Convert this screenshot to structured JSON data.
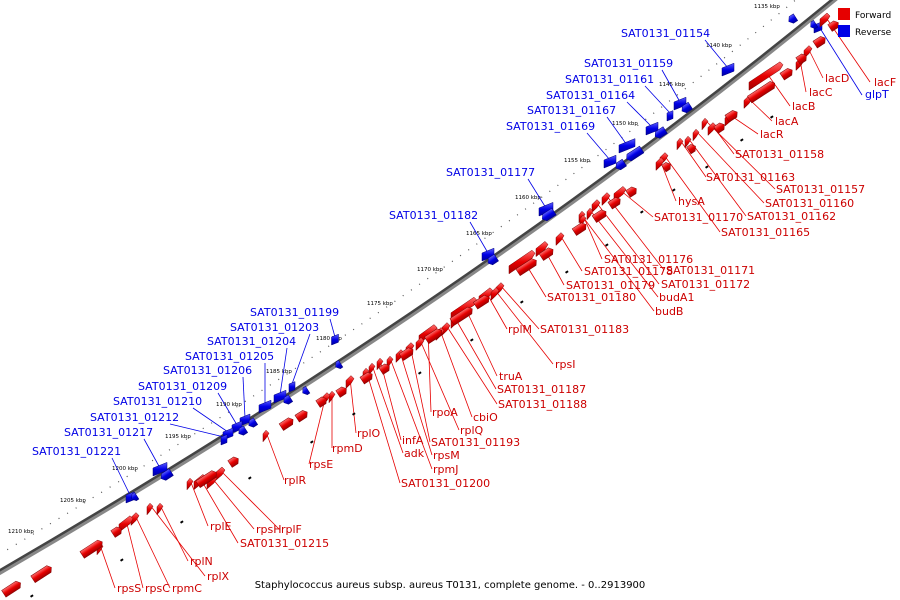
{
  "caption": "Staphylococcus aureus subsp. aureus T0131, complete genome. - 0..2913900",
  "legend": {
    "forward_label": "Forward",
    "reverse_label": "Reverse",
    "forward_color": "#e60000",
    "reverse_color": "#0000e6"
  },
  "ticks": [
    "1135 kbp",
    "1140 kbp",
    "1145 kbp",
    "1150 kbp",
    "1155 kbp",
    "1160 kbp",
    "1165 kbp",
    "1170 kbp",
    "1175 kbp",
    "1180 kbp",
    "1185 kbp",
    "1190 kbp",
    "1195 kbp",
    "1200 kbp",
    "1205 kbp",
    "1210 kbp"
  ],
  "reverse_genes": [
    "SAT0131_01154",
    "SAT0131_01159",
    "SAT0131_01161",
    "SAT0131_01164",
    "SAT0131_01167",
    "SAT0131_01169",
    "SAT0131_01177",
    "SAT0131_01182",
    "SAT0131_01199",
    "SAT0131_01203",
    "SAT0131_01204",
    "SAT0131_01205",
    "SAT0131_01206",
    "SAT0131_01209",
    "SAT0131_01210",
    "SAT0131_01212",
    "SAT0131_01217",
    "SAT0131_01221",
    "glpT"
  ],
  "forward_genes": [
    "lacF",
    "lacD",
    "lacC",
    "lacB",
    "lacA",
    "lacR",
    "SAT0131_01158",
    "SAT0131_01163",
    "SAT0131_01157",
    "SAT0131_01160",
    "SAT0131_01162",
    "SAT0131_01165",
    "hysA",
    "SAT0131_01170",
    "SAT0131_01176",
    "SAT0131_01171",
    "SAT0131_01178",
    "SAT0131_01172",
    "SAT0131_01179",
    "budA1",
    "SAT0131_01180",
    "budB",
    "SAT0131_01183",
    "rplM",
    "rpsI",
    "truA",
    "SAT0131_01187",
    "SAT0131_01188",
    "cbiO",
    "rpoA",
    "rplQ",
    "SAT0131_01193",
    "infA",
    "rpsM",
    "adk",
    "rpmJ",
    "rplO",
    "SAT0131_01200",
    "rpmD",
    "rpsE",
    "rplR",
    "rplF",
    "rpsH",
    "SAT0131_01215",
    "rplE",
    "rplN",
    "rplX",
    "rpmC",
    "rpsC",
    "rpsS"
  ]
}
